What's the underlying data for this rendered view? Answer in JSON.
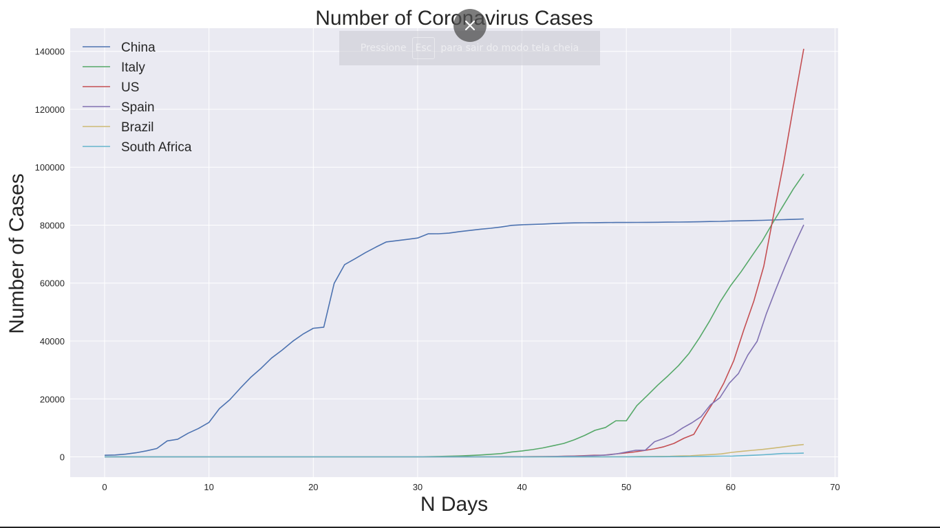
{
  "overlay": {
    "pre_text": "Pressione",
    "key": "Esc",
    "post_text": "para sair do modo tela cheia",
    "close_icon": "close-icon"
  },
  "chart_data": {
    "type": "line",
    "title": "Number of Coronavirus Cases",
    "xlabel": "N Days",
    "ylabel": "Number of Cases",
    "xlim": [
      -3.3,
      70.3
    ],
    "ylim": [
      -7000,
      148000
    ],
    "xticks": [
      0,
      10,
      20,
      30,
      40,
      50,
      60,
      70
    ],
    "yticks": [
      0,
      20000,
      40000,
      60000,
      80000,
      100000,
      120000,
      140000
    ],
    "grid": true,
    "legend_position": "top-left",
    "colors": {
      "background": "#eaeaf2",
      "grid": "#ffffff",
      "text": "#262626"
    },
    "x_range": [
      0,
      67
    ],
    "series": [
      {
        "name": "China",
        "color": "#4c72b0",
        "values": [
          548,
          643,
          920,
          1406,
          2075,
          2877,
          5509,
          6087,
          8141,
          9802,
          11891,
          16630,
          19716,
          23707,
          27440,
          30587,
          34110,
          36814,
          39829,
          42354,
          44386,
          44759,
          59895,
          66358,
          68413,
          70513,
          72434,
          74211,
          74619,
          75077,
          75550,
          77001,
          77022,
          77241,
          77754,
          78166,
          78600,
          78928,
          79356,
          79932,
          80136,
          80261,
          80386,
          80537,
          80690,
          80770,
          80823,
          80860,
          80887,
          80921,
          80932,
          80945,
          80977,
          81003,
          81033,
          81058,
          81102,
          81156,
          81250,
          81305,
          81435,
          81498,
          81591,
          81661,
          81782,
          81897,
          81999,
          82122
        ]
      },
      {
        "name": "Italy",
        "color": "#55a868",
        "values": [
          0,
          0,
          0,
          0,
          0,
          0,
          0,
          0,
          0,
          2,
          2,
          2,
          2,
          2,
          2,
          2,
          3,
          3,
          3,
          3,
          3,
          3,
          3,
          3,
          3,
          3,
          3,
          3,
          3,
          3,
          20,
          62,
          155,
          229,
          322,
          453,
          655,
          888,
          1128,
          1694,
          2036,
          2502,
          3089,
          3858,
          4636,
          5883,
          7375,
          9172,
          10149,
          12462,
          12462,
          17660,
          21157,
          24747,
          27980,
          31506,
          35713,
          41035,
          47021,
          53578,
          59138,
          63927,
          69176,
          74386,
          80589,
          86498,
          92472,
          97689
        ]
      },
      {
        "name": "US",
        "color": "#c44e52",
        "values": [
          1,
          1,
          2,
          2,
          5,
          5,
          5,
          5,
          5,
          5,
          5,
          6,
          6,
          8,
          8,
          8,
          11,
          11,
          12,
          12,
          12,
          12,
          12,
          13,
          13,
          15,
          15,
          15,
          15,
          15,
          15,
          15,
          15,
          35,
          35,
          35,
          53,
          53,
          59,
          60,
          62,
          70,
          76,
          101,
          122,
          153,
          221,
          278,
          417,
          537,
          605,
          959,
          1281,
          1663,
          2179,
          2726,
          3499,
          4632,
          6421,
          7786,
          13680,
          19101,
          25493,
          33276,
          43847,
          53740,
          65778,
          83836,
          101657,
          121478,
          140886
        ]
      },
      {
        "name": "Spain",
        "color": "#8172b2",
        "values": [
          0,
          0,
          0,
          0,
          0,
          0,
          0,
          0,
          0,
          0,
          1,
          1,
          1,
          1,
          1,
          1,
          1,
          1,
          1,
          1,
          2,
          2,
          2,
          2,
          2,
          2,
          2,
          2,
          2,
          2,
          2,
          2,
          2,
          2,
          2,
          2,
          2,
          2,
          2,
          2,
          2,
          2,
          6,
          13,
          15,
          32,
          45,
          84,
          120,
          165,
          222,
          259,
          400,
          500,
          673,
          1073,
          1695,
          2277,
          2277,
          5232,
          6391,
          7798,
          9942,
          11748,
          13910,
          17963,
          20410,
          25374,
          28768,
          35136,
          39885,
          49515,
          57786,
          65719,
          73235,
          80110
        ]
      },
      {
        "name": "Brazil",
        "color": "#ccb974",
        "values": [
          0,
          0,
          0,
          0,
          0,
          0,
          0,
          0,
          0,
          0,
          0,
          0,
          0,
          0,
          0,
          0,
          0,
          0,
          0,
          0,
          0,
          0,
          0,
          0,
          0,
          0,
          0,
          0,
          0,
          0,
          0,
          0,
          0,
          0,
          0,
          0,
          1,
          1,
          1,
          2,
          2,
          2,
          2,
          4,
          4,
          13,
          13,
          20,
          25,
          31,
          38,
          52,
          151,
          151,
          162,
          200,
          321,
          372,
          621,
          793,
          1021,
          1546,
          1924,
          2247,
          2554,
          2985,
          3417,
          3904,
          4256
        ]
      },
      {
        "name": "South Africa",
        "color": "#64b5cd",
        "values": [
          0,
          0,
          0,
          0,
          0,
          0,
          0,
          0,
          0,
          0,
          0,
          0,
          0,
          0,
          0,
          0,
          0,
          0,
          0,
          0,
          0,
          0,
          0,
          0,
          0,
          0,
          0,
          0,
          0,
          0,
          0,
          0,
          0,
          0,
          0,
          0,
          0,
          0,
          0,
          0,
          0,
          0,
          0,
          0,
          0,
          1,
          1,
          1,
          3,
          3,
          7,
          13,
          17,
          24,
          38,
          51,
          62,
          62,
          116,
          150,
          202,
          240,
          274,
          402,
          554,
          709,
          927,
          1170,
          1187,
          1280
        ]
      }
    ]
  }
}
